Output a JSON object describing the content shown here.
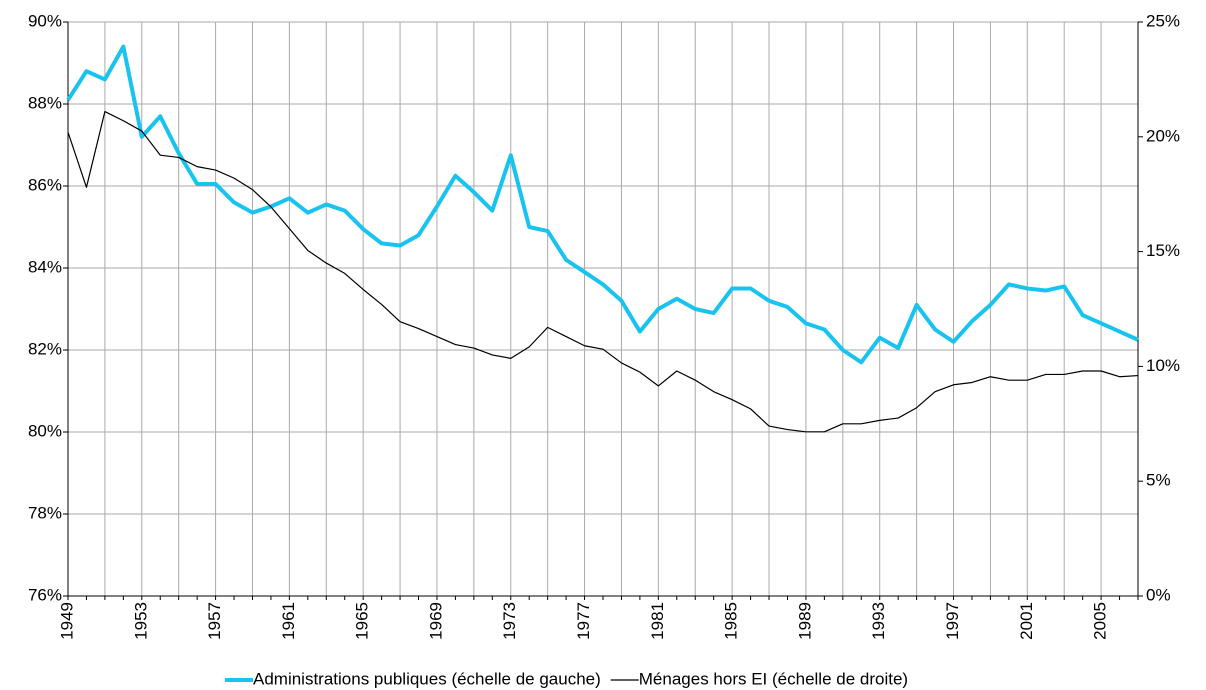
{
  "chart_data": {
    "type": "line",
    "categories": [
      "1949",
      null,
      null,
      null,
      "1953",
      null,
      null,
      null,
      "1957",
      null,
      null,
      null,
      "1961",
      null,
      null,
      null,
      "1965",
      null,
      null,
      null,
      "1969",
      null,
      null,
      null,
      "1973",
      null,
      null,
      null,
      "1977",
      null,
      null,
      null,
      "1981",
      null,
      null,
      null,
      "1985",
      null,
      null,
      null,
      "1989",
      null,
      null,
      null,
      "1993",
      null,
      null,
      null,
      "1997",
      null,
      null,
      null,
      "2001",
      null,
      null,
      null,
      "2005",
      null,
      null
    ],
    "series": [
      {
        "name": "Administrations publiques (échelle de gauche)",
        "color": "#19c3f0",
        "values": [
          88.1,
          88.8,
          88.6,
          89.4,
          87.2,
          87.7,
          86.8,
          86.05,
          86.05,
          85.6,
          85.35,
          85.5,
          85.7,
          85.35,
          85.55,
          85.4,
          84.95,
          84.6,
          84.55,
          84.8,
          85.5,
          86.25,
          85.85,
          85.4,
          86.75,
          85.0,
          84.9,
          84.2,
          83.9,
          83.6,
          83.2,
          82.45,
          83.0,
          83.25,
          83.0,
          82.9,
          83.5,
          83.5,
          83.2,
          83.05,
          82.65,
          82.5,
          82.0,
          81.7,
          82.3,
          82.05,
          83.1,
          82.5,
          82.2,
          82.7,
          83.1,
          83.6,
          83.5,
          83.45,
          83.55,
          82.85,
          82.65,
          82.45,
          82.25
        ]
      },
      {
        "name": "Ménages hors EI (échelle de droite)",
        "color": "#000000",
        "axis": "y2",
        "values": [
          20.2,
          17.8,
          21.1,
          20.7,
          20.25,
          19.2,
          19.1,
          18.7,
          18.55,
          18.2,
          17.7,
          16.95,
          16.0,
          15.05,
          14.5,
          14.05,
          13.35,
          12.7,
          11.95,
          11.65,
          11.3,
          10.95,
          10.8,
          10.5,
          10.35,
          10.85,
          11.7,
          11.3,
          10.9,
          10.75,
          10.15,
          9.75,
          9.15,
          9.8,
          9.4,
          8.9,
          8.55,
          8.15,
          7.4,
          7.25,
          7.15,
          7.15,
          7.5,
          7.5,
          7.65,
          7.75,
          8.2,
          8.9,
          9.2,
          9.3,
          9.55,
          9.4,
          9.4,
          9.65,
          9.65,
          9.8,
          9.8,
          9.55,
          9.6
        ]
      }
    ],
    "ylim": [
      76,
      90
    ],
    "yticks": [
      {
        "value": 76,
        "label": "76%"
      },
      {
        "value": 78,
        "label": "78%"
      },
      {
        "value": 80,
        "label": "80%"
      },
      {
        "value": 82,
        "label": "82%"
      },
      {
        "value": 84,
        "label": "84%"
      },
      {
        "value": 86,
        "label": "86%"
      },
      {
        "value": 88,
        "label": "88%"
      },
      {
        "value": 90,
        "label": "90%"
      }
    ],
    "y2lim": [
      0,
      25
    ],
    "y2ticks": [
      {
        "value": 0,
        "label": "0%"
      },
      {
        "value": 5,
        "label": "5%"
      },
      {
        "value": 10,
        "label": "10%"
      },
      {
        "value": 15,
        "label": "15%"
      },
      {
        "value": 20,
        "label": "20%"
      },
      {
        "value": 25,
        "label": "25%"
      }
    ],
    "grid": true,
    "legend": "bottom"
  }
}
